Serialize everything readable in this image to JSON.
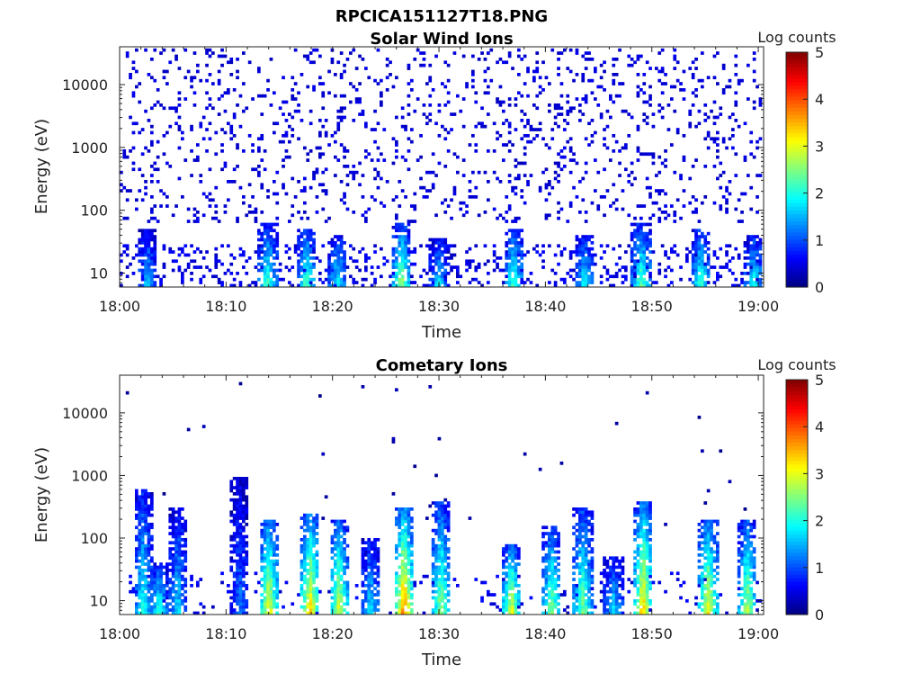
{
  "figure": {
    "title": "RPCICA151127T18.PNG"
  },
  "chart_data": [
    {
      "type": "heatmap",
      "title": "Solar Wind Ions",
      "xlabel": "Time",
      "ylabel": "Energy (eV)",
      "x_ticks": [
        "18:00",
        "18:10",
        "18:20",
        "18:30",
        "18:40",
        "18:50",
        "19:00"
      ],
      "y_ticks": [
        "10",
        "100",
        "1000",
        "10000"
      ],
      "y_scale": "log",
      "ylim": [
        6,
        40000
      ],
      "xlim_minutes": [
        0,
        60.5
      ],
      "colorbar": {
        "label": "Log counts",
        "ticks": [
          "0",
          "1",
          "2",
          "3",
          "4",
          "5"
        ],
        "range": [
          0,
          5
        ],
        "colormap": "jet"
      },
      "background_noise": {
        "energy_range": [
          60,
          40000
        ],
        "level": 0.3
      },
      "bursts": [
        {
          "time": 2.6,
          "level": 1.6,
          "max_energy": 50
        },
        {
          "time": 13.9,
          "level": 2.2,
          "max_energy": 60
        },
        {
          "time": 17.6,
          "level": 2.3,
          "max_energy": 50
        },
        {
          "time": 20.5,
          "level": 1.9,
          "max_energy": 40
        },
        {
          "time": 26.5,
          "level": 2.7,
          "max_energy": 60
        },
        {
          "time": 30.0,
          "level": 1.8,
          "max_energy": 35
        },
        {
          "time": 37.0,
          "level": 2.3,
          "max_energy": 50
        },
        {
          "time": 43.7,
          "level": 1.9,
          "max_energy": 40
        },
        {
          "time": 49.0,
          "level": 2.4,
          "max_energy": 60
        },
        {
          "time": 54.6,
          "level": 2.2,
          "max_energy": 50
        },
        {
          "time": 59.6,
          "level": 2.0,
          "max_energy": 40
        }
      ]
    },
    {
      "type": "heatmap",
      "title": "Cometary Ions",
      "xlabel": "Time",
      "ylabel": "Energy (eV)",
      "x_ticks": [
        "18:00",
        "18:10",
        "18:20",
        "18:30",
        "18:40",
        "18:50",
        "19:00"
      ],
      "y_ticks": [
        "10",
        "100",
        "1000",
        "10000"
      ],
      "y_scale": "log",
      "ylim": [
        6,
        40000
      ],
      "xlim_minutes": [
        0,
        60.5
      ],
      "colorbar": {
        "label": "Log counts",
        "ticks": [
          "0",
          "1",
          "2",
          "3",
          "4",
          "5"
        ],
        "range": [
          0,
          5
        ],
        "colormap": "jet"
      },
      "background_noise": {
        "energy_range": [
          150,
          30000
        ],
        "level": 0.05
      },
      "bursts": [
        {
          "time": 2.2,
          "level": 2.0,
          "max_energy": 600
        },
        {
          "time": 3.7,
          "level": 2.1,
          "max_energy": 40
        },
        {
          "time": 5.5,
          "level": 1.7,
          "max_energy": 300
        },
        {
          "time": 11.3,
          "level": 1.2,
          "max_energy": 900
        },
        {
          "time": 14.0,
          "level": 3.2,
          "max_energy": 200
        },
        {
          "time": 17.9,
          "level": 3.4,
          "max_energy": 250
        },
        {
          "time": 20.6,
          "level": 3.0,
          "max_energy": 200
        },
        {
          "time": 23.6,
          "level": 1.8,
          "max_energy": 100
        },
        {
          "time": 26.7,
          "level": 3.8,
          "max_energy": 300
        },
        {
          "time": 30.2,
          "level": 2.6,
          "max_energy": 400
        },
        {
          "time": 36.8,
          "level": 3.1,
          "max_energy": 80
        },
        {
          "time": 40.6,
          "level": 2.6,
          "max_energy": 150
        },
        {
          "time": 43.5,
          "level": 2.5,
          "max_energy": 300
        },
        {
          "time": 46.4,
          "level": 1.8,
          "max_energy": 50
        },
        {
          "time": 49.2,
          "level": 3.4,
          "max_energy": 400
        },
        {
          "time": 55.3,
          "level": 3.2,
          "max_energy": 200
        },
        {
          "time": 59.0,
          "level": 2.8,
          "max_energy": 200
        }
      ]
    }
  ]
}
